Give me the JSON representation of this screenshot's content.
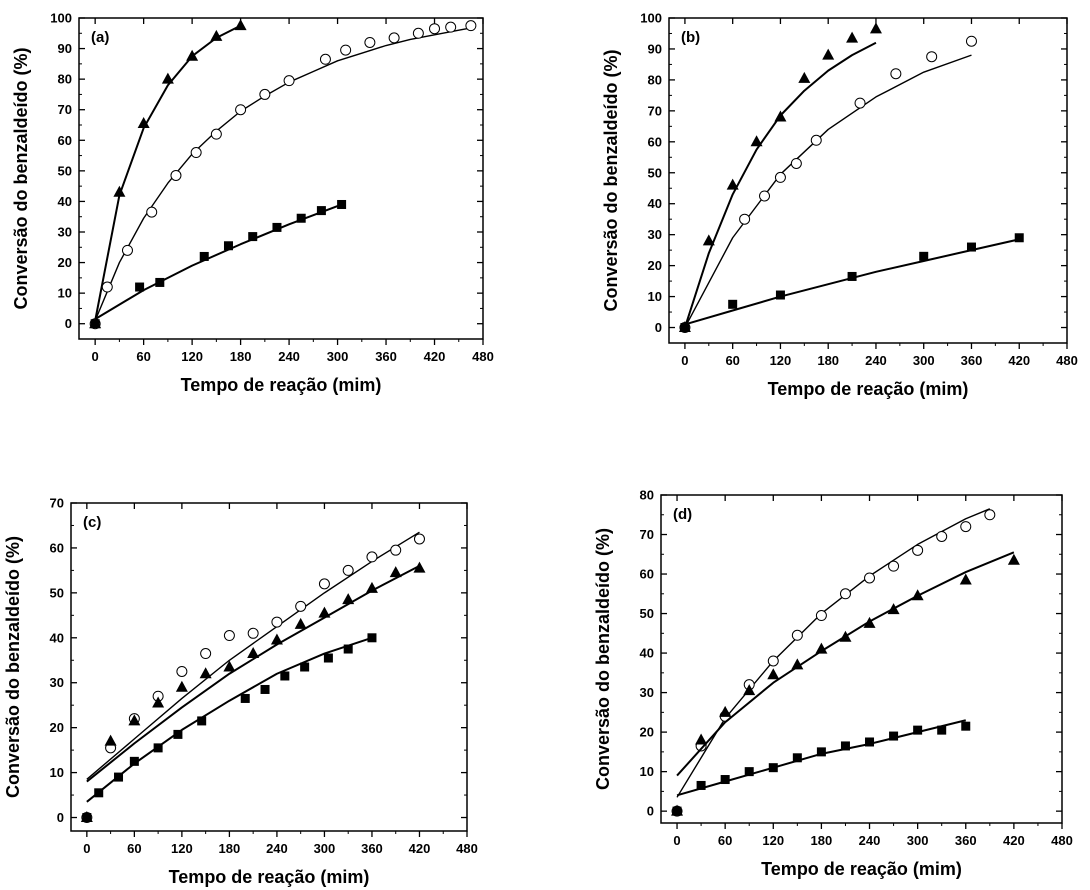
{
  "chart_data": [
    {
      "type": "scatter",
      "panel_label": "(a)",
      "xlabel": "Tempo de reação (mim)",
      "ylabel": "Conversão do benzaldeído (%)",
      "xlim": [
        -20,
        480
      ],
      "ylim": [
        -5,
        100
      ],
      "xticks": [
        0,
        60,
        120,
        180,
        240,
        300,
        360,
        420,
        480
      ],
      "yticks": [
        0,
        10,
        20,
        30,
        40,
        50,
        60,
        70,
        80,
        90,
        100
      ],
      "series": [
        {
          "marker": "triangle",
          "x": [
            0,
            30,
            60,
            90,
            120,
            150,
            180
          ],
          "y": [
            0,
            43,
            65.5,
            80,
            87.5,
            94,
            97.5
          ],
          "fit": {
            "x": [
              0,
              30,
              60,
              90,
              120,
              150,
              180
            ],
            "y": [
              1,
              42,
              64,
              78,
              87.5,
              93.5,
              97.5
            ]
          }
        },
        {
          "marker": "circle-open",
          "x": [
            0,
            15,
            40,
            70,
            100,
            125,
            150,
            180,
            210,
            240,
            285,
            310,
            340,
            370,
            400,
            420,
            440,
            465
          ],
          "y": [
            0,
            12,
            24,
            36.5,
            48.5,
            56,
            62,
            70,
            75,
            79.5,
            86.5,
            89.5,
            92,
            93.5,
            95,
            96.5,
            97,
            97.5
          ],
          "fit": {
            "x": [
              0,
              30,
              60,
              90,
              120,
              150,
              180,
              210,
              240,
              270,
              300,
              330,
              360,
              390,
              420,
              450,
              470
            ],
            "y": [
              1,
              20,
              34.5,
              46,
              55.5,
              63,
              69.5,
              74.5,
              79,
              82.5,
              86,
              88.5,
              91,
              93,
              94.5,
              96,
              97
            ]
          }
        },
        {
          "marker": "square",
          "x": [
            0,
            55,
            80,
            135,
            165,
            195,
            225,
            255,
            280,
            305
          ],
          "y": [
            0,
            12,
            13.5,
            22,
            25.5,
            28.5,
            31.5,
            34.5,
            37,
            39
          ],
          "fit": {
            "x": [
              0,
              60,
              120,
              180,
              240,
              300
            ],
            "y": [
              1.5,
              11,
              19,
              26,
              32.5,
              38.5
            ]
          }
        }
      ]
    },
    {
      "type": "scatter",
      "panel_label": "(b)",
      "xlabel": "Tempo de reação (mim)",
      "ylabel": "Conversão do benzaldeído (%)",
      "xlim": [
        -20,
        480
      ],
      "ylim": [
        -5,
        100
      ],
      "xticks": [
        0,
        60,
        120,
        180,
        240,
        300,
        360,
        420,
        480
      ],
      "yticks": [
        0,
        10,
        20,
        30,
        40,
        50,
        60,
        70,
        80,
        90,
        100
      ],
      "series": [
        {
          "marker": "triangle",
          "x": [
            0,
            30,
            60,
            90,
            120,
            150,
            180,
            210,
            240
          ],
          "y": [
            0,
            28,
            46,
            60,
            68,
            80.5,
            88,
            93.5,
            96.5
          ],
          "fit": {
            "x": [
              0,
              30,
              60,
              90,
              120,
              150,
              180,
              210,
              240
            ],
            "y": [
              0,
              24,
              43,
              57.5,
              68.5,
              76.5,
              83,
              88,
              92
            ]
          }
        },
        {
          "marker": "circle-open",
          "x": [
            0,
            75,
            100,
            120,
            140,
            165,
            220,
            265,
            310,
            360
          ],
          "y": [
            0,
            35,
            42.5,
            48.5,
            53,
            60.5,
            72.5,
            82,
            87.5,
            92.5
          ],
          "fit": {
            "x": [
              0,
              60,
              120,
              180,
              240,
              300,
              360
            ],
            "y": [
              0,
              29,
              49.5,
              64,
              74.5,
              82.5,
              88
            ]
          }
        },
        {
          "marker": "square",
          "x": [
            0,
            60,
            120,
            210,
            300,
            360,
            420
          ],
          "y": [
            0,
            7.5,
            10.5,
            16.5,
            23,
            26,
            29
          ],
          "fit": {
            "x": [
              0,
              60,
              120,
              180,
              240,
              300,
              360,
              420
            ],
            "y": [
              1,
              5.5,
              10,
              14,
              18,
              21.5,
              25,
              28.5
            ]
          }
        }
      ]
    },
    {
      "type": "scatter",
      "panel_label": "(c)",
      "xlabel": "Tempo de reação (mim)",
      "ylabel": "Conversão do benzaldeído (%)",
      "xlim": [
        -20,
        480
      ],
      "ylim": [
        -3,
        70
      ],
      "xticks": [
        0,
        60,
        120,
        180,
        240,
        300,
        360,
        420,
        480
      ],
      "yticks": [
        0,
        10,
        20,
        30,
        40,
        50,
        60,
        70
      ],
      "series": [
        {
          "marker": "circle-open",
          "x": [
            0,
            30,
            60,
            90,
            120,
            150,
            180,
            210,
            240,
            270,
            300,
            330,
            360,
            390,
            420
          ],
          "y": [
            0,
            15.5,
            22,
            27,
            32.5,
            36.5,
            40.5,
            41,
            43.5,
            47,
            52,
            55,
            58,
            59.5,
            62
          ],
          "fit": {
            "x": [
              0,
              60,
              120,
              180,
              240,
              300,
              360,
              420
            ],
            "y": [
              8.5,
              17.5,
              26.5,
              35,
              42.5,
              50,
              57,
              63.5
            ]
          }
        },
        {
          "marker": "triangle",
          "x": [
            0,
            30,
            60,
            90,
            120,
            150,
            180,
            210,
            240,
            270,
            300,
            330,
            360,
            390,
            420
          ],
          "y": [
            0,
            17,
            21.5,
            25.5,
            29,
            32,
            33.5,
            36.5,
            39.5,
            43,
            45.5,
            48.5,
            51,
            54.5,
            55.5
          ],
          "fit": {
            "x": [
              0,
              60,
              120,
              180,
              240,
              300,
              360,
              420
            ],
            "y": [
              8,
              16.5,
              24.5,
              32,
              38.5,
              44.5,
              50.5,
              56
            ]
          }
        },
        {
          "marker": "square",
          "x": [
            0,
            15,
            40,
            60,
            90,
            115,
            145,
            200,
            225,
            250,
            275,
            305,
            330,
            360
          ],
          "y": [
            0,
            5.5,
            9,
            12.5,
            15.5,
            18.5,
            21.5,
            26.5,
            28.5,
            31.5,
            33.5,
            35.5,
            37.5,
            40
          ],
          "fit": {
            "x": [
              0,
              60,
              120,
              180,
              240,
              300,
              360
            ],
            "y": [
              3.5,
              12,
              19.5,
              26,
              32,
              36.5,
              40
            ]
          }
        }
      ]
    },
    {
      "type": "scatter",
      "panel_label": "(d)",
      "xlabel": "Tempo de reação (mim)",
      "ylabel": "Conversão do benzaldeído (%)",
      "xlim": [
        -20,
        480
      ],
      "ylim": [
        -3,
        80
      ],
      "xticks": [
        0,
        60,
        120,
        180,
        240,
        300,
        360,
        420,
        480
      ],
      "yticks": [
        0,
        10,
        20,
        30,
        40,
        50,
        60,
        70,
        80
      ],
      "series": [
        {
          "marker": "circle-open",
          "x": [
            0,
            30,
            60,
            90,
            120,
            150,
            180,
            210,
            240,
            270,
            300,
            330,
            360,
            390
          ],
          "y": [
            0,
            16.5,
            24,
            32,
            38,
            44.5,
            49.5,
            55,
            59,
            62,
            66,
            69.5,
            72,
            75
          ],
          "fit": {
            "x": [
              0,
              60,
              120,
              180,
              240,
              300,
              360,
              390
            ],
            "y": [
              3.5,
              23.5,
              38,
              50,
              59.5,
              67.5,
              74,
              76.5
            ]
          }
        },
        {
          "marker": "triangle",
          "x": [
            0,
            30,
            60,
            90,
            120,
            150,
            180,
            210,
            240,
            270,
            300,
            360,
            420
          ],
          "y": [
            0,
            18,
            25,
            30.5,
            34.5,
            37,
            41,
            44,
            47.5,
            51,
            54.5,
            58.5,
            63.5
          ],
          "fit": {
            "x": [
              0,
              60,
              120,
              180,
              240,
              300,
              360,
              420
            ],
            "y": [
              9,
              22.5,
              32.5,
              40.5,
              48,
              54.5,
              60.5,
              65.5
            ]
          }
        },
        {
          "marker": "square",
          "x": [
            0,
            30,
            60,
            90,
            120,
            150,
            180,
            210,
            240,
            270,
            300,
            330,
            360
          ],
          "y": [
            0,
            6.5,
            8,
            10,
            11,
            13.5,
            15,
            16.5,
            17.5,
            19,
            20.5,
            20.5,
            21.5
          ],
          "fit": {
            "x": [
              0,
              60,
              120,
              180,
              240,
              300,
              360
            ],
            "y": [
              4,
              7.5,
              11,
              14.5,
              17,
              20,
              23
            ]
          }
        }
      ]
    }
  ]
}
